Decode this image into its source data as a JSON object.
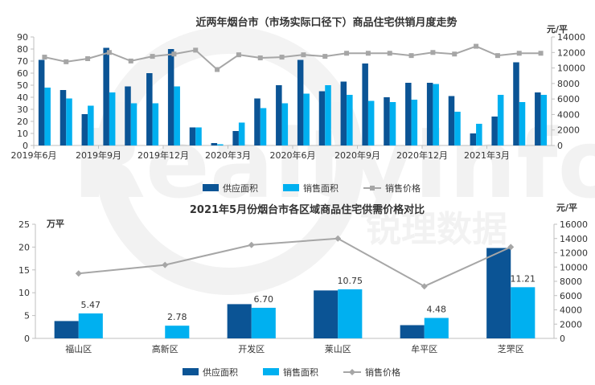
{
  "colors": {
    "supply": "#0b5495",
    "sales": "#00b0f0",
    "price": "#a6a6a6",
    "axis": "#7f7f7f",
    "text": "#333333"
  },
  "watermark": {
    "brand_en": "RealtyInfo",
    "brand_cn": "锐理数据"
  },
  "chart_data": [
    {
      "type": "bar",
      "title": "近两年烟台市（市场实际口径下）商品住宅供销月度走势",
      "ylabel_right": "元/平",
      "ylim": [
        0,
        90
      ],
      "ylim_right": [
        0,
        14000
      ],
      "yticks": [
        0,
        10,
        20,
        30,
        40,
        50,
        60,
        70,
        80,
        90
      ],
      "yticks_right": [
        0,
        2000,
        4000,
        6000,
        8000,
        10000,
        12000,
        14000
      ],
      "tick_labels": [
        "2019年6月",
        "2019年9月",
        "2019年12月",
        "2020年3月",
        "2020年6月",
        "2020年9月",
        "2020年12月",
        "2021年3月"
      ],
      "tick_label_index": [
        0,
        3,
        6,
        9,
        12,
        15,
        18,
        21
      ],
      "categories": [
        "2019-06",
        "2019-07",
        "2019-08",
        "2019-09",
        "2019-10",
        "2019-11",
        "2019-12",
        "2020-01",
        "2020-02",
        "2020-03",
        "2020-04",
        "2020-05",
        "2020-06",
        "2020-07",
        "2020-08",
        "2020-09",
        "2020-10",
        "2020-11",
        "2020-12",
        "2021-01",
        "2021-02",
        "2021-03",
        "2021-04",
        "2021-05"
      ],
      "series": [
        {
          "name": "供应面积",
          "values": [
            71,
            46,
            26,
            81,
            49,
            60,
            80,
            15,
            2,
            12,
            39,
            50,
            71,
            45,
            53,
            68,
            40,
            52,
            52,
            41,
            10,
            24,
            69,
            44
          ]
        },
        {
          "name": "销售面积",
          "values": [
            48,
            39,
            33,
            44,
            35,
            35,
            49,
            15,
            1,
            19,
            31,
            35,
            43,
            50,
            42,
            37,
            36,
            38,
            51,
            28,
            18,
            42,
            36,
            42
          ]
        },
        {
          "name": "销售价格",
          "values": [
            11400,
            10800,
            11200,
            12000,
            10900,
            11500,
            11800,
            12300,
            9800,
            11700,
            11300,
            11400,
            11700,
            11500,
            11900,
            11900,
            11900,
            11600,
            12000,
            11800,
            12800,
            11600,
            11900,
            11900
          ],
          "axis": "right"
        }
      ],
      "legend": "bottom",
      "grid": false
    },
    {
      "type": "bar",
      "title": "2021年5月份烟台市各区域商品住宅供需价格对比",
      "ylabel": "万平",
      "ylabel_right": "元/平",
      "ylim": [
        0,
        25
      ],
      "ylim_right": [
        0,
        16000
      ],
      "yticks": [
        0,
        5,
        10,
        15,
        20,
        25
      ],
      "yticks_right": [
        0,
        2000,
        4000,
        6000,
        8000,
        10000,
        12000,
        14000,
        16000
      ],
      "categories": [
        "福山区",
        "高新区",
        "开发区",
        "莱山区",
        "牟平区",
        "芝罘区"
      ],
      "series": [
        {
          "name": "供应面积",
          "values": [
            3.8,
            0,
            7.5,
            10.5,
            2.9,
            19.8
          ]
        },
        {
          "name": "销售面积",
          "values": [
            5.47,
            2.78,
            6.7,
            10.75,
            4.48,
            11.21
          ],
          "labels": [
            "5.47",
            "2.78",
            "6.70",
            "10.75",
            "4.48",
            "11.21"
          ]
        },
        {
          "name": "销售价格",
          "values": [
            9100,
            10300,
            13100,
            14000,
            7300,
            12800
          ],
          "axis": "right"
        }
      ],
      "legend": "bottom",
      "grid": false
    }
  ]
}
